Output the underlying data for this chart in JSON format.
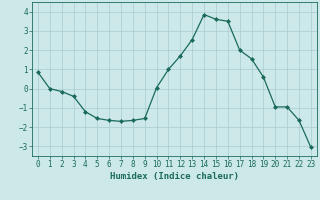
{
  "x": [
    0,
    1,
    2,
    3,
    4,
    5,
    6,
    7,
    8,
    9,
    10,
    11,
    12,
    13,
    14,
    15,
    16,
    17,
    18,
    19,
    20,
    21,
    22,
    23
  ],
  "y": [
    0.85,
    0.0,
    -0.15,
    -0.4,
    -1.2,
    -1.55,
    -1.65,
    -1.7,
    -1.65,
    -1.55,
    0.05,
    1.0,
    1.7,
    2.55,
    3.85,
    3.6,
    3.5,
    2.0,
    1.55,
    0.6,
    -0.95,
    -0.95,
    -1.65,
    -3.05
  ],
  "line_color": "#1a6b5a",
  "marker": "D",
  "markersize": 2.0,
  "linewidth": 0.9,
  "bg_color": "#cce8e8",
  "grid_color": "#a8cccc",
  "xlabel": "Humidex (Indice chaleur)",
  "xlabel_fontsize": 6.5,
  "tick_fontsize": 5.5,
  "xlim": [
    -0.5,
    23.5
  ],
  "ylim": [
    -3.5,
    4.5
  ],
  "yticks": [
    -3,
    -2,
    -1,
    0,
    1,
    2,
    3,
    4
  ],
  "xticks": [
    0,
    1,
    2,
    3,
    4,
    5,
    6,
    7,
    8,
    9,
    10,
    11,
    12,
    13,
    14,
    15,
    16,
    17,
    18,
    19,
    20,
    21,
    22,
    23
  ]
}
